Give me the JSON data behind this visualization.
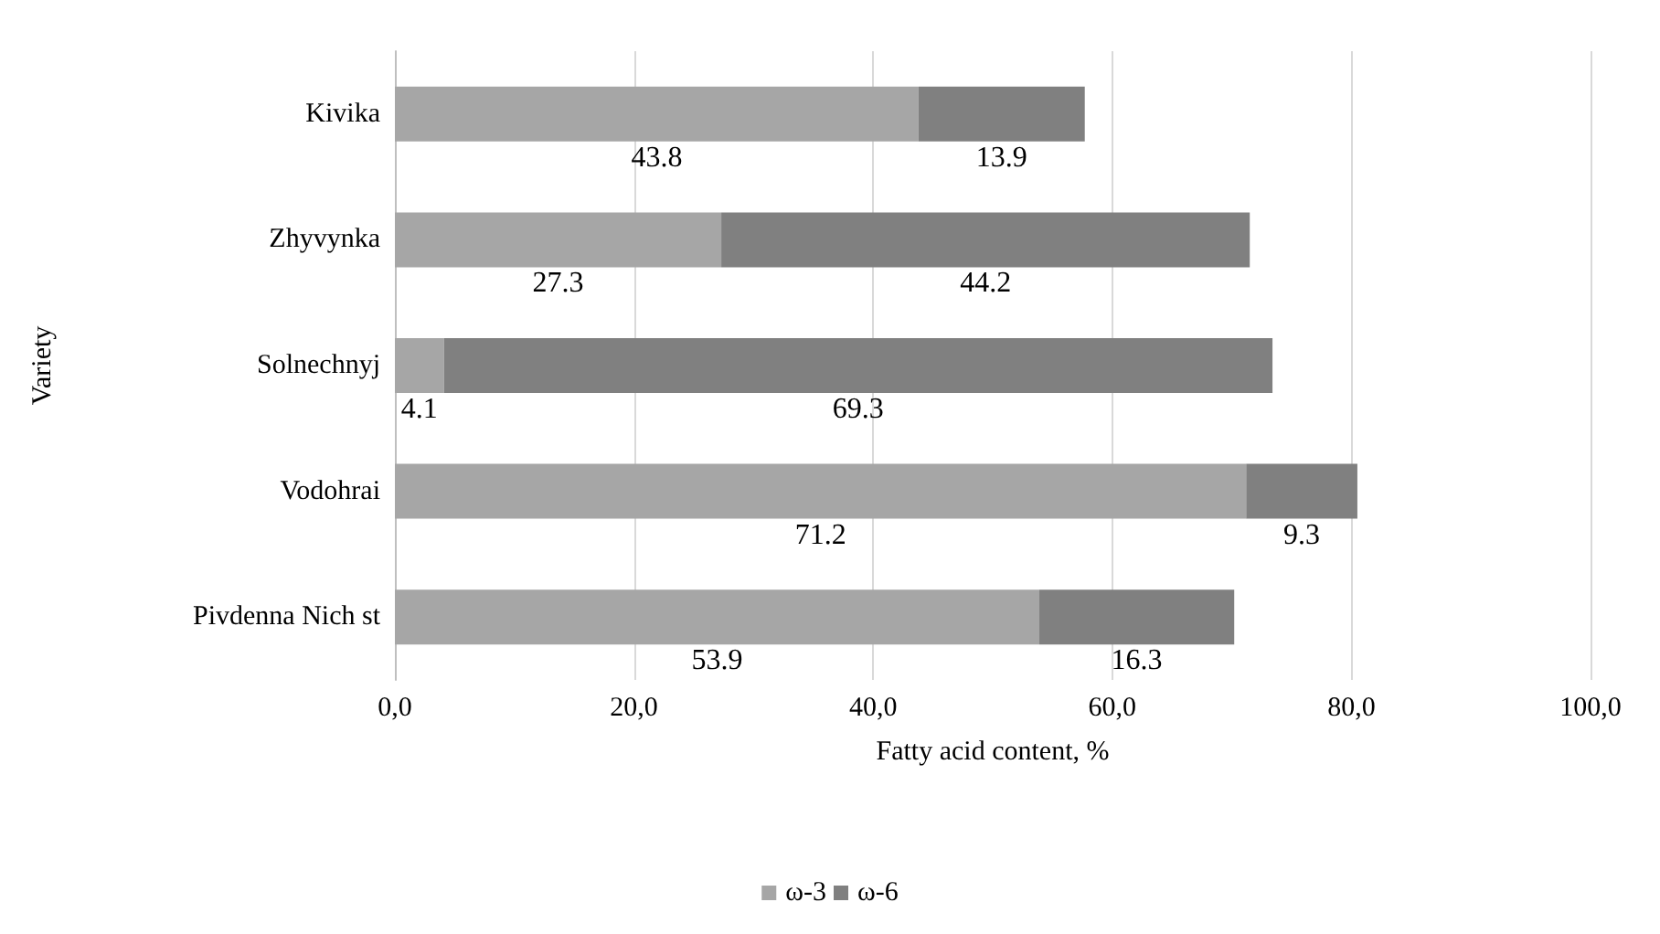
{
  "chart_data": {
    "type": "bar",
    "orientation": "horizontal",
    "stacked": true,
    "xlabel": "Fatty acid content, %",
    "ylabel": "Variety",
    "categories": [
      "Kivika",
      "Zhyvynka",
      "Solnechnyj",
      "Vodohrai",
      "Pivdenna Nich st"
    ],
    "series": [
      {
        "name": "ω-3",
        "color": "#a6a6a6",
        "values": [
          43.8,
          27.3,
          4.1,
          71.2,
          53.9
        ]
      },
      {
        "name": "ω-6",
        "color": "#808080",
        "values": [
          13.9,
          44.2,
          69.3,
          9.3,
          16.3
        ]
      }
    ],
    "xlim": [
      0,
      100
    ],
    "xticks": [
      {
        "value": 0,
        "label": "0,0"
      },
      {
        "value": 20,
        "label": "20,0"
      },
      {
        "value": 40,
        "label": "40,0"
      },
      {
        "value": 60,
        "label": "60,0"
      },
      {
        "value": 80,
        "label": "80,0"
      },
      {
        "value": 100,
        "label": "100,0"
      }
    ],
    "grid": "x",
    "legend": "bottom",
    "data_labels": true
  }
}
